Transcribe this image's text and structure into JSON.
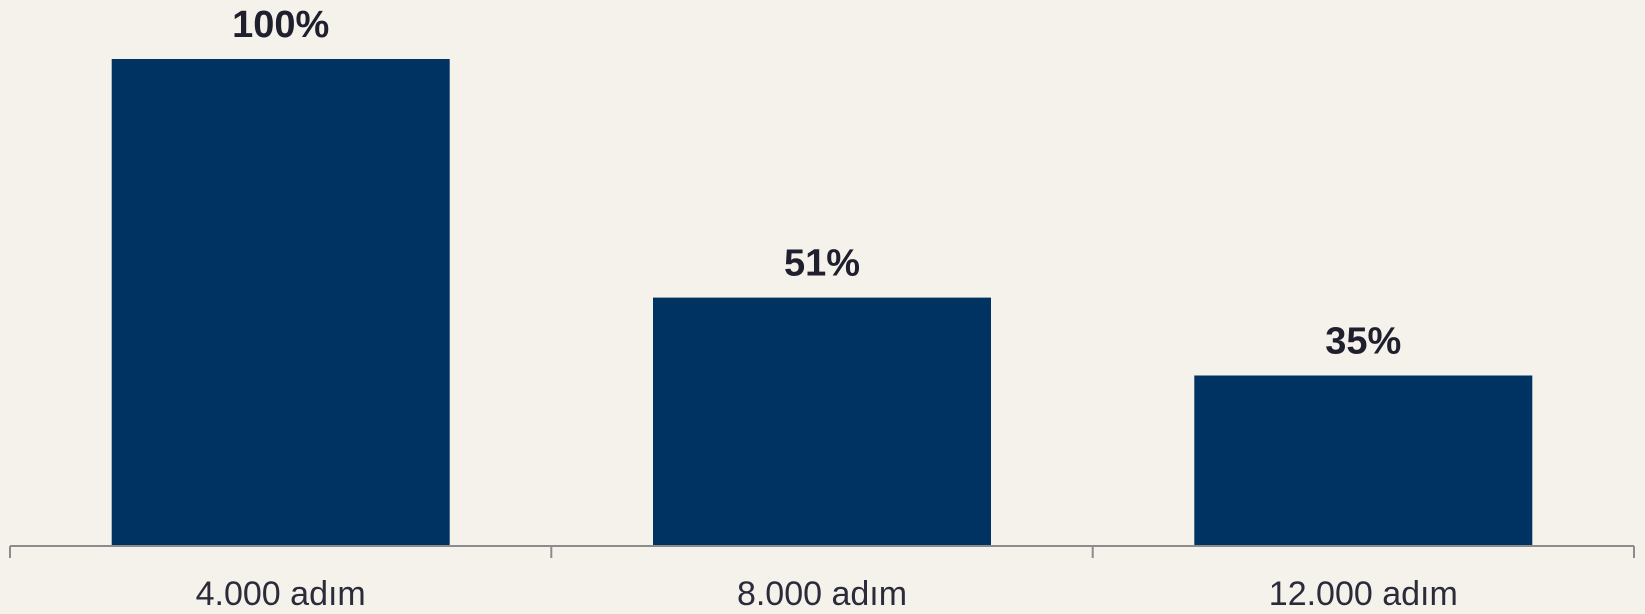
{
  "chart_data": {
    "type": "bar",
    "categories": [
      "4.000 adım",
      "8.000 adım",
      "12.000 adım"
    ],
    "values": [
      100,
      51,
      35
    ],
    "value_labels": [
      "100%",
      "51%",
      "35%"
    ],
    "title": "",
    "xlabel": "",
    "ylabel": "",
    "ylim": [
      0,
      100
    ],
    "grid": false,
    "legend": "none"
  },
  "colors": {
    "background": "#f4f2eb",
    "bar": "#003361",
    "axis": "#8c8c8c",
    "label_text": "#1f1f2e"
  }
}
